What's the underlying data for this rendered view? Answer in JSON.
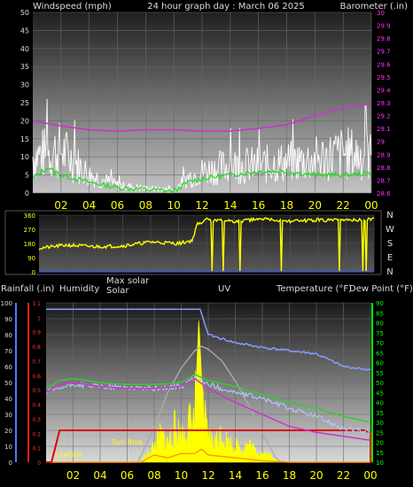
{
  "colors": {
    "background": "#000000",
    "wind_speed": "#ffffff",
    "wind_avg": "#22dd22",
    "barometer": "#cc33cc",
    "barometer_axis": "#ff33ff",
    "direction": "#ffff00",
    "day_label": "#ffff00",
    "rain_axis": "#5577ff",
    "humidity": "#8899ff",
    "solar": "#ffff00",
    "max_solar": "#aaaaaa",
    "uv": "#ff9900",
    "temperature": "#33cc33",
    "dew_point": "#cc33cc",
    "feels_like": "#aaccff",
    "rain": "#dd0000",
    "temp_axis": "#00ff00"
  },
  "chart_data": [
    {
      "type": "line",
      "panel": "wind-barometer",
      "labels": {
        "left_axis": "Windspeed (mph)",
        "title": "24 hour graph day : March 06 2025",
        "right_axis": "Barometer (.in)"
      },
      "x_ticks": [
        "02",
        "04",
        "06",
        "08",
        "10",
        "12",
        "14",
        "16",
        "18",
        "20",
        "22",
        "00"
      ],
      "y_left": {
        "min": 0,
        "max": 50,
        "ticks": [
          "0",
          "5",
          "10",
          "15",
          "20",
          "25",
          "30",
          "35",
          "40",
          "45",
          "50"
        ]
      },
      "y_right": {
        "min": 28.6,
        "max": 30,
        "ticks": [
          "28.6",
          "28.7",
          "28.8",
          "28.9",
          "29",
          "29.1",
          "29.2",
          "29.3",
          "29.4",
          "29.5",
          "29.6",
          "29.7",
          "29.8",
          "29.9",
          "30"
        ]
      },
      "series": [
        {
          "key": "speed",
          "x": [
            0,
            2,
            4,
            6,
            8,
            10,
            11,
            12,
            14,
            16,
            18,
            20,
            22,
            24
          ],
          "values": [
            12,
            14,
            6,
            2.5,
            1.5,
            1,
            5,
            7,
            9,
            9,
            10,
            11,
            13,
            12
          ]
        },
        {
          "key": "average",
          "x": [
            0,
            1,
            2,
            4,
            6,
            8,
            10,
            11,
            12,
            14,
            16,
            18,
            20,
            22,
            24
          ],
          "values": [
            4,
            7,
            5,
            3,
            1.5,
            1,
            0.5,
            3,
            4,
            5,
            6,
            6,
            5,
            5,
            5.5
          ]
        },
        {
          "key": "barometer",
          "x": [
            0,
            2,
            4,
            6,
            8,
            10,
            12,
            14,
            16,
            18,
            20,
            22,
            24
          ],
          "values": [
            29.16,
            29.12,
            29.09,
            29.08,
            29.09,
            29.09,
            29.08,
            29.08,
            29.1,
            29.13,
            29.2,
            29.26,
            29.29
          ]
        }
      ]
    },
    {
      "type": "scatter",
      "panel": "wind-direction",
      "x_ticks": [
        "02",
        "04",
        "06",
        "08",
        "10",
        "12",
        "14",
        "16",
        "18",
        "20",
        "22",
        "00"
      ],
      "y_ticks": [
        "0",
        "90",
        "180",
        "270",
        "360"
      ],
      "compass": [
        "N",
        "W",
        "S",
        "E",
        "N"
      ],
      "y_range": [
        0,
        360
      ],
      "series": [
        {
          "key": "direction",
          "x": [
            0,
            2,
            4,
            6,
            8,
            10,
            11,
            11.3,
            12,
            14,
            16,
            18,
            20,
            22,
            24
          ],
          "values": [
            150,
            170,
            160,
            165,
            190,
            180,
            200,
            300,
            330,
            320,
            335,
            320,
            330,
            325,
            335
          ]
        }
      ]
    },
    {
      "type": "line",
      "panel": "rain-humidity-solar-uv-temperature",
      "labels": {
        "rainfall": "Rainfall (.in)",
        "humidity": "Humidity",
        "max_solar": "Max solar",
        "solar": "Solar",
        "uv": "UV",
        "temperature": "Temperature (°F)",
        "dew_point": "Dew Point (°F)",
        "sunrise": "Sun Rise",
        "lowtide": "Lowtide"
      },
      "x_ticks": [
        "02",
        "04",
        "06",
        "08",
        "10",
        "12",
        "14",
        "16",
        "18",
        "20",
        "22",
        "00"
      ],
      "humidity_axis": {
        "min": 0,
        "max": 100,
        "ticks": [
          "0",
          "10",
          "20",
          "30",
          "40",
          "50",
          "60",
          "70",
          "80",
          "90",
          "100"
        ]
      },
      "rain_axis": {
        "min": 0,
        "max": 1.1,
        "ticks": [
          "0",
          "0.1",
          "0.2",
          "0.3",
          "0.4",
          "0.5",
          "0.6",
          "0.7",
          "0.8",
          "0.9",
          "1",
          "1.1"
        ]
      },
      "temp_axis": {
        "min": 10,
        "max": 90,
        "ticks": [
          "10",
          "15",
          "20",
          "25",
          "30",
          "35",
          "40",
          "45",
          "50",
          "55",
          "60",
          "65",
          "70",
          "75",
          "80",
          "85",
          "90"
        ]
      },
      "series": [
        {
          "key": "humidity",
          "x": [
            0,
            4,
            8,
            10,
            11,
            11.4,
            12,
            14,
            16,
            18,
            20,
            22,
            24
          ],
          "values": [
            96,
            96,
            96,
            96,
            96,
            96,
            80,
            75,
            72,
            70,
            68,
            60,
            58
          ]
        },
        {
          "key": "temperature",
          "x": [
            0,
            1,
            2,
            4,
            6,
            8,
            10,
            11,
            12,
            14,
            16,
            18,
            20,
            22,
            24
          ],
          "values": [
            47,
            51,
            52,
            50,
            49,
            49,
            50,
            54,
            51,
            48,
            44,
            40,
            37,
            33,
            30
          ]
        },
        {
          "key": "dew_point",
          "x": [
            0,
            1,
            2,
            4,
            6,
            8,
            10,
            11,
            12,
            14,
            16,
            18,
            20,
            22,
            24
          ],
          "values": [
            45,
            49,
            50,
            48,
            47,
            47,
            48,
            52,
            47,
            40,
            34,
            28,
            25,
            23,
            21
          ]
        },
        {
          "key": "feels_like",
          "x": [
            0,
            2,
            4,
            8,
            10,
            11,
            12,
            14,
            16,
            18,
            20,
            22,
            24
          ],
          "values": [
            45,
            49,
            48,
            47,
            48,
            52,
            49,
            45,
            42,
            37,
            33,
            27,
            25
          ]
        },
        {
          "key": "rain",
          "x": [
            0,
            0.4,
            1,
            4,
            8,
            12,
            16,
            20,
            23.6,
            24,
            24
          ],
          "values": [
            0,
            0,
            0.22,
            0.22,
            0.22,
            0.22,
            0.22,
            0.22,
            0.22,
            0.2,
            0
          ]
        },
        {
          "key": "max_solar",
          "x": [
            6.8,
            8,
            9,
            10,
            11,
            11.5,
            12,
            13,
            14,
            15,
            16,
            17,
            17.4
          ],
          "values": [
            0,
            0.24,
            0.48,
            0.65,
            0.77,
            0.8,
            0.78,
            0.7,
            0.56,
            0.39,
            0.2,
            0.03,
            0
          ]
        },
        {
          "key": "solar",
          "x": [
            6.9,
            7.5,
            8,
            8.5,
            9,
            9.5,
            10,
            10.5,
            11,
            11.3,
            11.5,
            11.8,
            12,
            12.5,
            13,
            13.5,
            14,
            14.5,
            15,
            15.5,
            16,
            16.5,
            17,
            17.4
          ],
          "values": [
            0,
            0.05,
            0.12,
            0.2,
            0.14,
            0.25,
            0.2,
            0.28,
            0.32,
            1.0,
            0.6,
            0.25,
            0.18,
            0.15,
            0.22,
            0.14,
            0.12,
            0.1,
            0.13,
            0.08,
            0.07,
            0.05,
            0.03,
            0
          ]
        },
        {
          "key": "uv",
          "x": [
            0,
            7,
            8,
            9,
            10,
            11,
            11.5,
            12,
            13,
            14,
            16,
            18,
            24
          ],
          "values": [
            0,
            0,
            0.05,
            0.03,
            0.06,
            0.06,
            0.09,
            0.05,
            0.04,
            0.03,
            0.01,
            0,
            0
          ]
        }
      ]
    }
  ]
}
